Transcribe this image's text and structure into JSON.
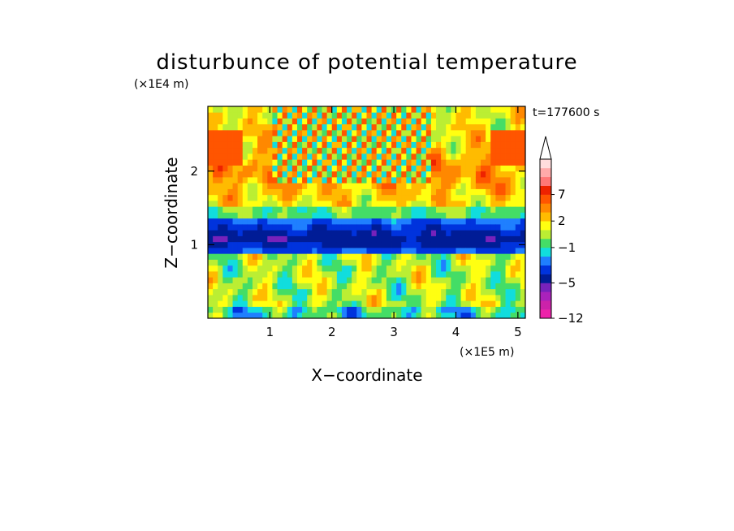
{
  "chart_data": {
    "type": "heatmap",
    "title": "disturbunce of potential temperature",
    "xlabel": "X−coordinate",
    "ylabel": "Z−coordinate",
    "x_unit": "(×1E5 m)",
    "y_unit": "(×1E4 m)",
    "time_label": "t=177600 s",
    "xlim": [
      0,
      5.12
    ],
    "ylim": [
      0,
      2.88
    ],
    "x_ticks": [
      1,
      2,
      3,
      4,
      5
    ],
    "y_ticks": [
      1,
      2
    ],
    "colorbar": {
      "levels": [
        {
          "color": "#ee22aa"
        },
        {
          "color": "#cc22aa"
        },
        {
          "color": "#aa22bb"
        },
        {
          "color": "#7722bb"
        },
        {
          "color": "#001c96"
        },
        {
          "color": "#0033dd"
        },
        {
          "color": "#1f7fff"
        },
        {
          "color": "#11dddd"
        },
        {
          "color": "#44dd66"
        },
        {
          "color": "#bbee33"
        },
        {
          "color": "#ffff11"
        },
        {
          "color": "#ffbb00"
        },
        {
          "color": "#ff8800"
        },
        {
          "color": "#ff5500"
        },
        {
          "color": "#ee2200"
        },
        {
          "color": "#ff7777"
        },
        {
          "color": "#ffaaaa"
        },
        {
          "color": "#ffdddd"
        }
      ],
      "labels": [
        {
          "text": "7",
          "level": 14
        },
        {
          "text": "2",
          "level": 11
        },
        {
          "text": "−1",
          "level": 8
        },
        {
          "text": "−5",
          "level": 4
        },
        {
          "text": "−12",
          "level": 0
        }
      ]
    },
    "structure": {
      "surface_band_z": [
        0.0,
        0.9
      ],
      "cold_layer_z": [
        0.85,
        1.35
      ],
      "core_cold_z": [
        0.95,
        1.15
      ],
      "upper_band_z": [
        1.5,
        2.9
      ],
      "wave_packet_x": [
        1.0,
        3.6
      ]
    }
  }
}
